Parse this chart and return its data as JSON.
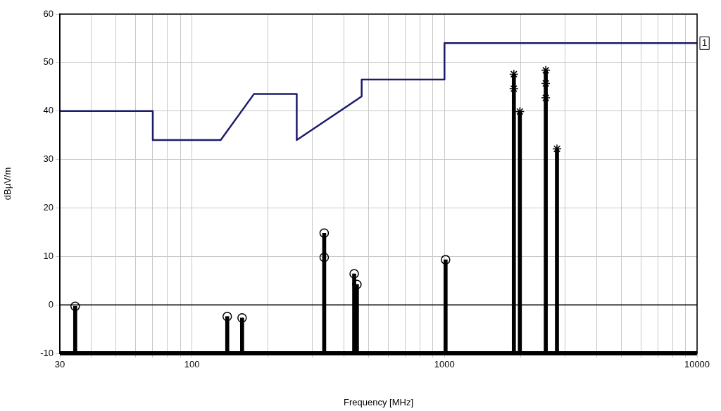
{
  "chart_data": {
    "type": "line",
    "xlabel": "Frequency [MHz]",
    "ylabel": "dBµV/m",
    "log": "x",
    "grid": true,
    "legend": false,
    "xlim": [
      30,
      10000
    ],
    "ylim": [
      -10,
      60
    ],
    "xticks": [
      30,
      {
        "value": 40,
        "label": null
      },
      {
        "value": 50,
        "label": null
      },
      {
        "value": 60,
        "label": null
      },
      {
        "value": 70,
        "label": null
      },
      {
        "value": 80,
        "label": null
      },
      {
        "value": 90,
        "label": null
      },
      100,
      {
        "value": 200,
        "label": null
      },
      {
        "value": 300,
        "label": null
      },
      {
        "value": 400,
        "label": null
      },
      {
        "value": 500,
        "label": null
      },
      {
        "value": 600,
        "label": null
      },
      {
        "value": 700,
        "label": null
      },
      {
        "value": 800,
        "label": null
      },
      {
        "value": 900,
        "label": null
      },
      1000,
      {
        "value": 2000,
        "label": null
      },
      {
        "value": 3000,
        "label": null
      },
      {
        "value": 4000,
        "label": null
      },
      {
        "value": 5000,
        "label": null
      },
      {
        "value": 6000,
        "label": null
      },
      {
        "value": 7000,
        "label": null
      },
      {
        "value": 8000,
        "label": null
      },
      {
        "value": 9000,
        "label": null
      },
      10000
    ],
    "yticks": [
      -10,
      0,
      10,
      20,
      30,
      40,
      50,
      60
    ],
    "ref_lines": [
      {
        "axis": "y",
        "value": 0,
        "color": "#000000"
      }
    ],
    "annotations": [
      {
        "text": "1",
        "x": 10000,
        "y": 54
      }
    ],
    "series": [
      {
        "color": "#1c1c6b",
        "marker": "none",
        "line_style": "solid",
        "x": [
          30,
          70,
          70,
          130,
          176,
          260,
          260,
          470,
          470,
          1000,
          1000,
          10000
        ],
        "values": [
          40,
          40,
          34,
          34,
          43.5,
          43.5,
          34,
          43,
          46.5,
          46.5,
          54,
          54
        ]
      },
      {
        "type": "bar",
        "color": "#000000",
        "x": [
          34.5,
          138,
          158,
          334,
          439,
          450,
          1010,
          1882,
          1988,
          2518,
          2788
        ],
        "base": [
          -10,
          -10,
          -10,
          -10,
          -10,
          -10,
          -10,
          -10,
          -10,
          -10,
          -10
        ],
        "values": [
          9.7,
          7.6,
          7.3,
          24.8,
          16.4,
          14.2,
          19.3,
          57.6,
          49.9,
          58.4,
          42.2
        ]
      },
      {
        "type": "scatter",
        "color": "#000000",
        "marker": "circle",
        "x": [
          34.5,
          138,
          158,
          334,
          334,
          439,
          450,
          1010
        ],
        "values": [
          -0.3,
          -2.4,
          -2.7,
          14.8,
          9.8,
          6.4,
          4.2,
          9.3
        ]
      },
      {
        "type": "scatter",
        "color": "#000000",
        "marker": "cross",
        "x": [
          1882,
          1882,
          1988,
          2518,
          2518,
          2518,
          2788
        ],
        "values": [
          47.6,
          44.6,
          39.9,
          48.4,
          45.7,
          42.7,
          32.2
        ]
      }
    ]
  }
}
